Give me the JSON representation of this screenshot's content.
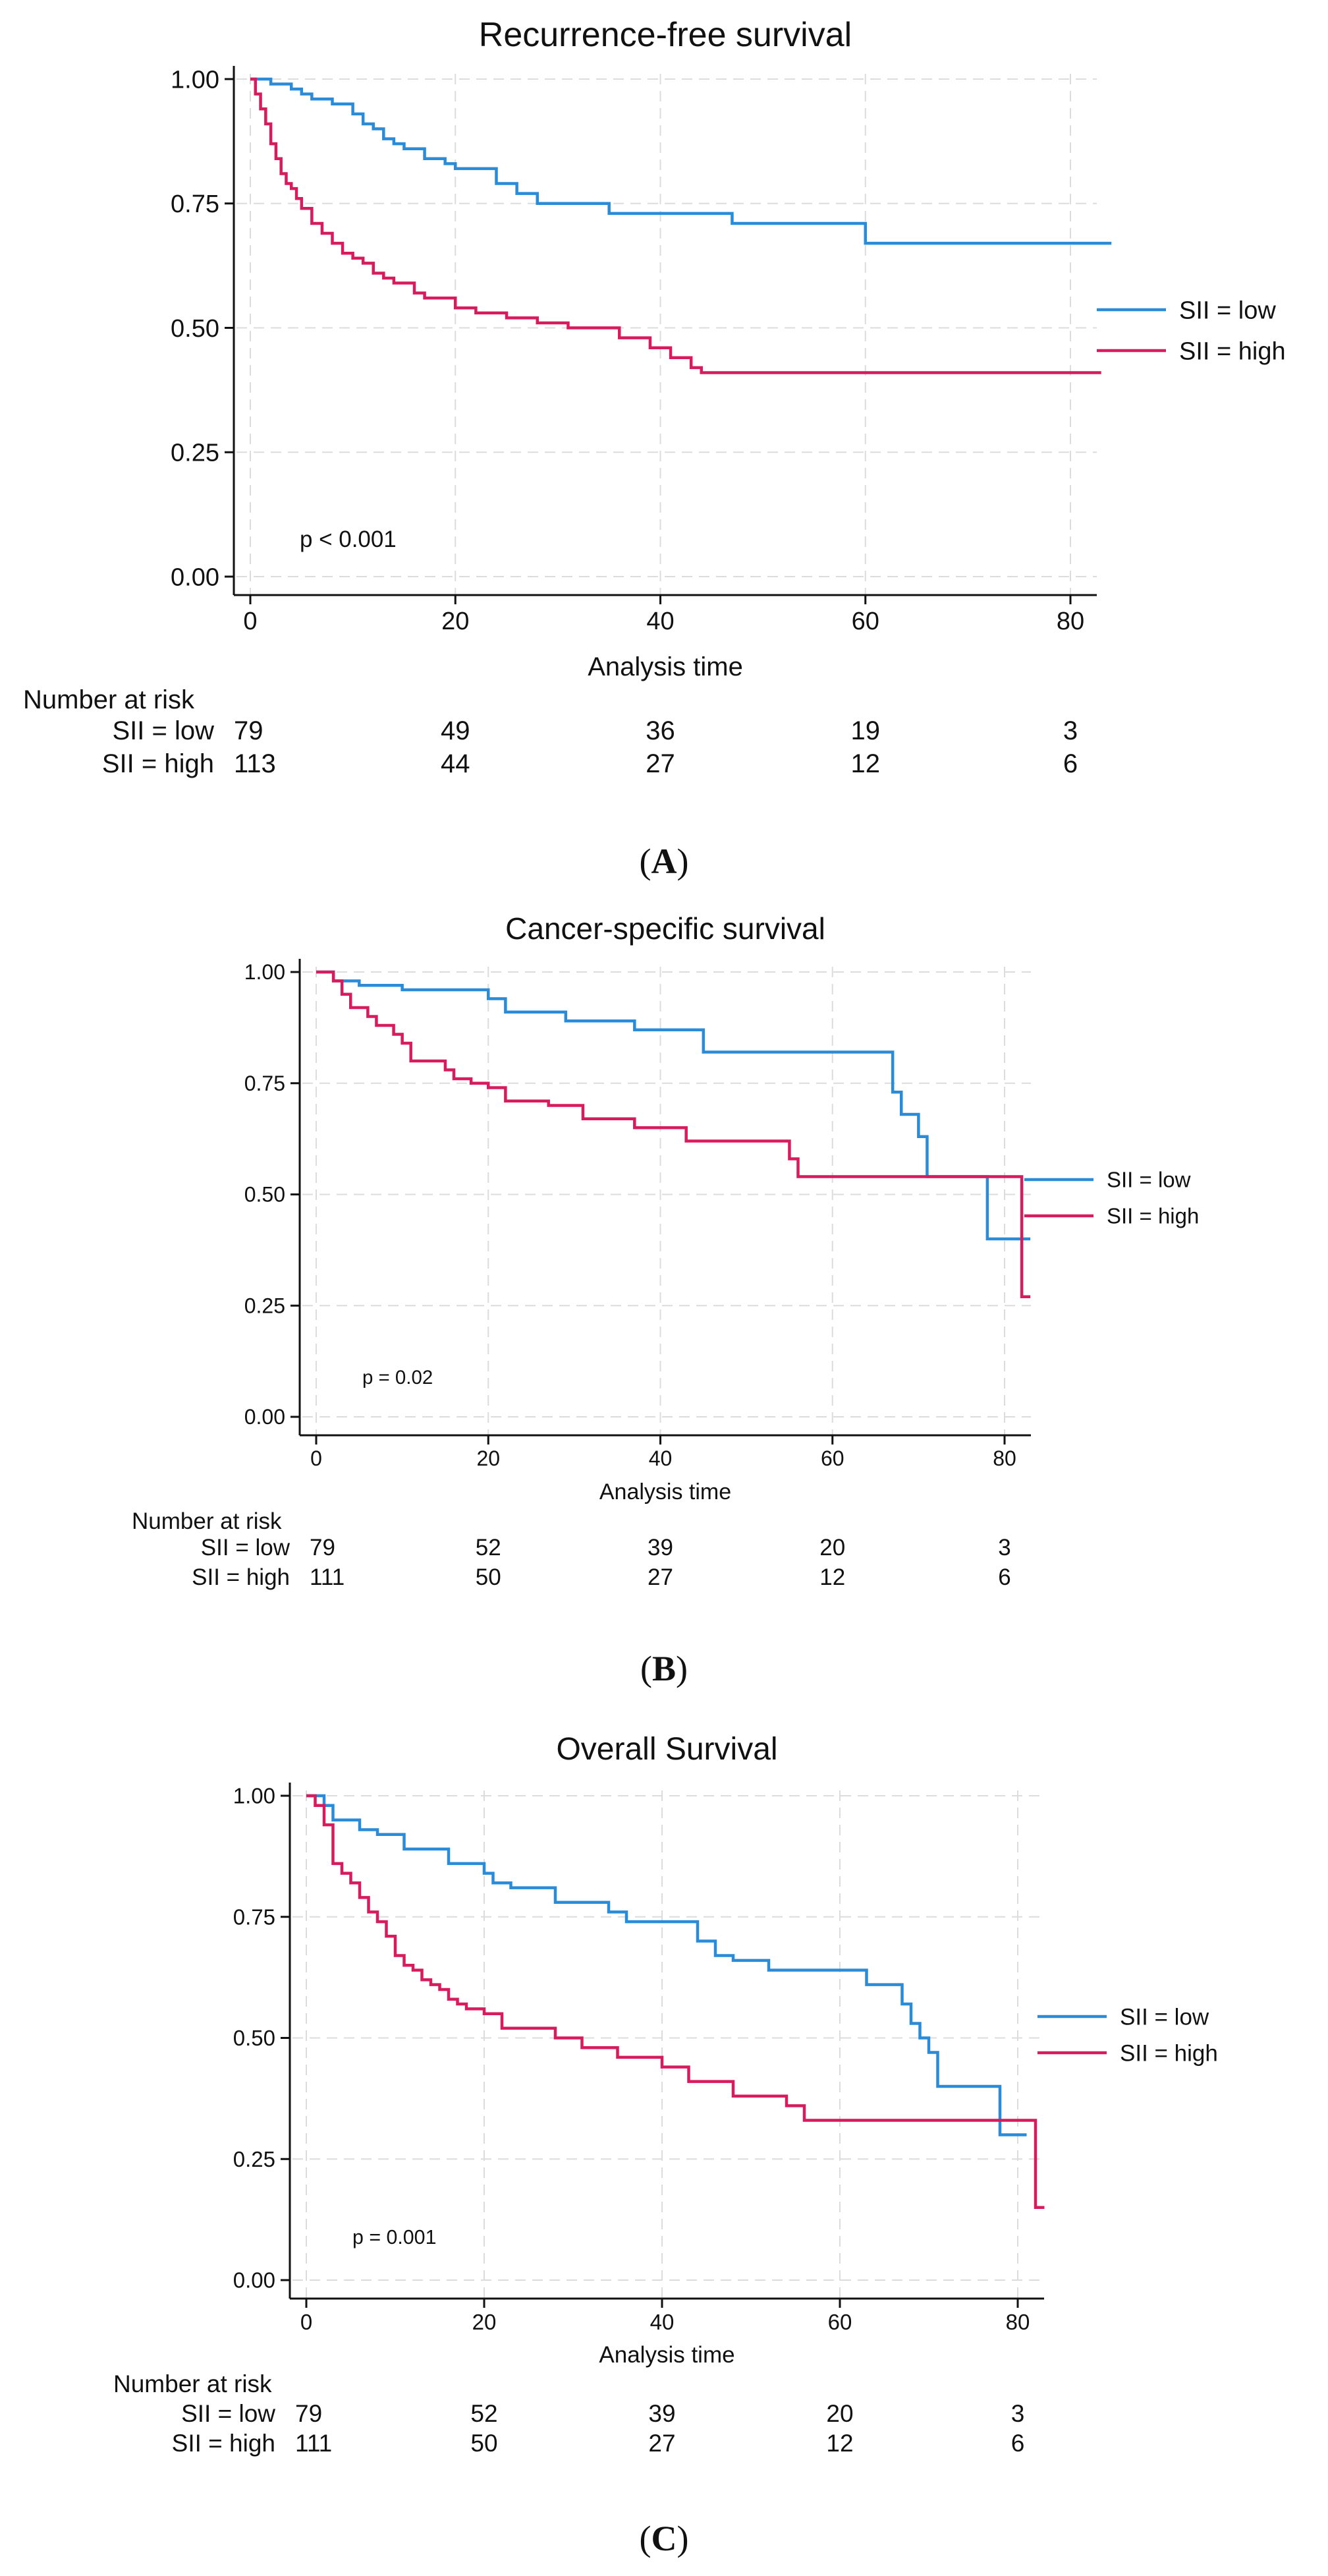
{
  "colors": {
    "low": "#2a8bd8",
    "high": "#d81b5c",
    "grid": "#dcdcdc",
    "axis": "#111111"
  },
  "chart_data": [
    {
      "panel": "A",
      "caption_letter": "A",
      "type": "line",
      "title": "Recurrence-free survival",
      "xlabel": "Analysis time",
      "ylabel": "",
      "xlim": [
        0,
        85
      ],
      "ylim": [
        0,
        1
      ],
      "xticks": [
        0,
        20,
        40,
        60,
        80
      ],
      "yticks": [
        "0.00",
        "0.25",
        "0.50",
        "0.75",
        "1.00"
      ],
      "grid": true,
      "p_text": "p < 0.001",
      "legend": [
        "SII = low",
        "SII = high"
      ],
      "series": [
        {
          "name": "SII = low",
          "color_key": "low",
          "x": [
            0,
            2,
            4,
            5,
            6,
            8,
            10,
            11,
            12,
            13,
            14,
            15,
            17,
            19,
            20,
            24,
            26,
            28,
            35,
            47,
            60,
            84
          ],
          "y": [
            1.0,
            0.99,
            0.98,
            0.97,
            0.96,
            0.95,
            0.93,
            0.91,
            0.9,
            0.88,
            0.87,
            0.86,
            0.84,
            0.83,
            0.82,
            0.79,
            0.77,
            0.75,
            0.73,
            0.71,
            0.67,
            0.67
          ]
        },
        {
          "name": "SII = high",
          "color_key": "high",
          "x": [
            0,
            0.5,
            1,
            1.5,
            2,
            2.5,
            3,
            3.5,
            4,
            4.5,
            5,
            6,
            7,
            8,
            9,
            10,
            11,
            12,
            13,
            14,
            16,
            17,
            20,
            22,
            25,
            28,
            31,
            36,
            39,
            41,
            43,
            44,
            50,
            83
          ],
          "y": [
            1.0,
            0.97,
            0.94,
            0.91,
            0.87,
            0.84,
            0.81,
            0.79,
            0.78,
            0.76,
            0.74,
            0.71,
            0.69,
            0.67,
            0.65,
            0.64,
            0.63,
            0.61,
            0.6,
            0.59,
            0.57,
            0.56,
            0.54,
            0.53,
            0.52,
            0.51,
            0.5,
            0.48,
            0.46,
            0.44,
            0.42,
            0.41,
            0.41,
            0.41
          ]
        }
      ],
      "risk_table": {
        "heading": "Number at risk",
        "rows": [
          {
            "label": "SII = low",
            "values": [
              "79",
              "49",
              "36",
              "19",
              "3"
            ]
          },
          {
            "label": "SII = high",
            "values": [
              "113",
              "44",
              "27",
              "12",
              "6"
            ]
          }
        ]
      }
    },
    {
      "panel": "B",
      "caption_letter": "B",
      "type": "line",
      "title": "Cancer-specific survival",
      "xlabel": "Analysis time",
      "ylabel": "",
      "xlim": [
        0,
        85
      ],
      "ylim": [
        0,
        1
      ],
      "xticks": [
        0,
        20,
        40,
        60,
        80
      ],
      "yticks": [
        "0.00",
        "0.25",
        "0.50",
        "0.75",
        "1.00"
      ],
      "grid": true,
      "p_text": "p = 0.02",
      "legend": [
        "SII = low",
        "SII = high"
      ],
      "series": [
        {
          "name": "SII = low",
          "color_key": "low",
          "x": [
            0,
            2,
            5,
            10,
            20,
            22,
            29,
            37,
            45,
            67,
            68,
            70,
            71,
            78,
            83
          ],
          "y": [
            1.0,
            0.98,
            0.97,
            0.96,
            0.94,
            0.91,
            0.89,
            0.87,
            0.82,
            0.73,
            0.68,
            0.63,
            0.54,
            0.4,
            0.4
          ]
        },
        {
          "name": "SII = high",
          "color_key": "high",
          "x": [
            0,
            2,
            3,
            4,
            6,
            7,
            9,
            10,
            11,
            15,
            16,
            18,
            20,
            22,
            27,
            31,
            37,
            43,
            55,
            56,
            82,
            83
          ],
          "y": [
            1.0,
            0.98,
            0.95,
            0.92,
            0.9,
            0.88,
            0.86,
            0.84,
            0.8,
            0.78,
            0.76,
            0.75,
            0.74,
            0.71,
            0.7,
            0.67,
            0.65,
            0.62,
            0.58,
            0.54,
            0.27,
            0.27
          ]
        }
      ],
      "risk_table": {
        "heading": "Number at risk",
        "rows": [
          {
            "label": "SII = low",
            "values": [
              "79",
              "52",
              "39",
              "20",
              "3"
            ]
          },
          {
            "label": "SII = high",
            "values": [
              "111",
              "50",
              "27",
              "12",
              "6"
            ]
          }
        ]
      }
    },
    {
      "panel": "C",
      "caption_letter": "C",
      "type": "line",
      "title": "Overall Survival",
      "xlabel": "Analysis time",
      "ylabel": "",
      "xlim": [
        0,
        85
      ],
      "ylim": [
        0,
        1
      ],
      "xticks": [
        0,
        20,
        40,
        60,
        80
      ],
      "yticks": [
        "0.00",
        "0.25",
        "0.50",
        "0.75",
        "1.00"
      ],
      "grid": true,
      "p_text": "p = 0.001",
      "legend": [
        "SII = low",
        "SII = high"
      ],
      "series": [
        {
          "name": "SII = low",
          "color_key": "low",
          "x": [
            0,
            2,
            3,
            6,
            8,
            11,
            16,
            20,
            21,
            23,
            28,
            34,
            36,
            44,
            46,
            48,
            52,
            63,
            67,
            68,
            69,
            70,
            71,
            78,
            81
          ],
          "y": [
            1.0,
            0.98,
            0.95,
            0.93,
            0.92,
            0.89,
            0.86,
            0.84,
            0.82,
            0.81,
            0.78,
            0.76,
            0.74,
            0.7,
            0.67,
            0.66,
            0.64,
            0.61,
            0.57,
            0.53,
            0.5,
            0.47,
            0.4,
            0.3,
            0.3
          ]
        },
        {
          "name": "SII = high",
          "color_key": "high",
          "x": [
            0,
            1,
            2,
            3,
            4,
            5,
            6,
            7,
            8,
            9,
            10,
            11,
            12,
            13,
            14,
            15,
            16,
            17,
            18,
            20,
            22,
            28,
            31,
            35,
            40,
            43,
            48,
            54,
            56,
            82,
            83
          ],
          "y": [
            1.0,
            0.98,
            0.94,
            0.86,
            0.84,
            0.82,
            0.79,
            0.76,
            0.74,
            0.71,
            0.67,
            0.65,
            0.64,
            0.62,
            0.61,
            0.6,
            0.58,
            0.57,
            0.56,
            0.55,
            0.52,
            0.5,
            0.48,
            0.46,
            0.44,
            0.41,
            0.38,
            0.36,
            0.33,
            0.15,
            0.15
          ]
        }
      ],
      "risk_table": {
        "heading": "Number at risk",
        "rows": [
          {
            "label": "SII = low",
            "values": [
              "79",
              "52",
              "39",
              "20",
              "3"
            ]
          },
          {
            "label": "SII = high",
            "values": [
              "111",
              "50",
              "27",
              "12",
              "6"
            ]
          }
        ]
      }
    }
  ]
}
